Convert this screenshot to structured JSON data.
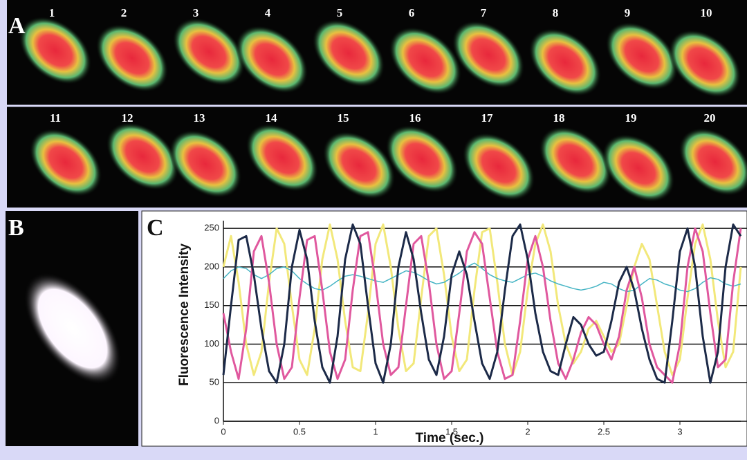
{
  "panels": {
    "a": {
      "label": "A",
      "frames": [
        "1",
        "2",
        "3",
        "4",
        "5",
        "6",
        "7",
        "8",
        "9",
        "10",
        "11",
        "12",
        "13",
        "14",
        "15",
        "16",
        "17",
        "18",
        "19",
        "20"
      ]
    },
    "b": {
      "label": "B"
    },
    "c": {
      "label": "C"
    }
  },
  "chart_data": {
    "type": "line",
    "xlabel": "Time (sec.)",
    "ylabel": "Fluorescence Intensity",
    "x": [
      0,
      0.05,
      0.1,
      0.15,
      0.2,
      0.25,
      0.3,
      0.35,
      0.4,
      0.45,
      0.5,
      0.55,
      0.6,
      0.65,
      0.7,
      0.75,
      0.8,
      0.85,
      0.9,
      0.95,
      1,
      1.05,
      1.1,
      1.15,
      1.2,
      1.25,
      1.3,
      1.35,
      1.4,
      1.45,
      1.5,
      1.55,
      1.6,
      1.65,
      1.7,
      1.75,
      1.8,
      1.85,
      1.9,
      1.95,
      2,
      2.05,
      2.1,
      2.15,
      2.2,
      2.25,
      2.3,
      2.35,
      2.4,
      2.45,
      2.5,
      2.55,
      2.6,
      2.65,
      2.7,
      2.75,
      2.8,
      2.85,
      2.9,
      2.95,
      3,
      3.05,
      3.1,
      3.15,
      3.2,
      3.25,
      3.3,
      3.35,
      3.4
    ],
    "series": [
      {
        "color": "#f2e87a",
        "values": [
          200,
          240,
          180,
          100,
          60,
          90,
          180,
          250,
          230,
          150,
          80,
          60,
          120,
          210,
          255,
          210,
          130,
          70,
          65,
          140,
          230,
          255,
          200,
          120,
          65,
          75,
          160,
          240,
          250,
          190,
          110,
          65,
          80,
          170,
          245,
          250,
          180,
          100,
          60,
          90,
          170,
          230,
          255,
          220,
          150,
          100,
          75,
          90,
          120,
          130,
          110,
          90,
          100,
          150,
          200,
          230,
          210,
          150,
          90,
          60,
          80,
          160,
          230,
          255,
          210,
          130,
          70,
          90,
          200
        ]
      },
      {
        "color": "#45b4c4",
        "values": [
          185,
          195,
          200,
          198,
          190,
          185,
          190,
          198,
          200,
          195,
          185,
          178,
          172,
          170,
          175,
          182,
          188,
          190,
          188,
          185,
          182,
          180,
          185,
          190,
          195,
          193,
          188,
          182,
          178,
          180,
          186,
          192,
          200,
          205,
          198,
          190,
          185,
          182,
          180,
          185,
          190,
          192,
          188,
          182,
          178,
          175,
          172,
          170,
          172,
          175,
          180,
          178,
          172,
          168,
          170,
          178,
          185,
          183,
          178,
          175,
          170,
          168,
          172,
          180,
          186,
          184,
          178,
          175,
          178
        ]
      },
      {
        "color": "#e0589e",
        "values": [
          140,
          90,
          55,
          120,
          220,
          240,
          180,
          100,
          55,
          70,
          160,
          235,
          240,
          170,
          90,
          55,
          80,
          170,
          240,
          245,
          180,
          100,
          60,
          70,
          150,
          230,
          240,
          180,
          100,
          55,
          65,
          140,
          220,
          245,
          230,
          160,
          90,
          55,
          60,
          130,
          210,
          240,
          200,
          130,
          75,
          55,
          80,
          115,
          135,
          125,
          100,
          80,
          110,
          170,
          200,
          160,
          100,
          70,
          60,
          50,
          100,
          200,
          250,
          220,
          140,
          70,
          80,
          180,
          250
        ]
      },
      {
        "color": "#1c2a48",
        "values": [
          60,
          150,
          235,
          240,
          190,
          120,
          65,
          50,
          100,
          200,
          248,
          210,
          130,
          70,
          50,
          110,
          210,
          255,
          230,
          150,
          75,
          50,
          100,
          200,
          245,
          210,
          140,
          80,
          60,
          110,
          190,
          220,
          190,
          130,
          75,
          55,
          90,
          170,
          240,
          255,
          210,
          140,
          90,
          65,
          60,
          100,
          135,
          125,
          100,
          85,
          90,
          130,
          180,
          200,
          170,
          120,
          80,
          55,
          50,
          130,
          220,
          250,
          200,
          110,
          50,
          90,
          200,
          255,
          240
        ]
      }
    ],
    "xlim": [
      0,
      3.4
    ],
    "ylim": [
      0,
      260
    ],
    "xticks": [
      0,
      0.5,
      1,
      1.5,
      2,
      2.5,
      3
    ],
    "yticks": [
      0,
      50,
      100,
      150,
      200,
      250
    ],
    "grid": true
  }
}
